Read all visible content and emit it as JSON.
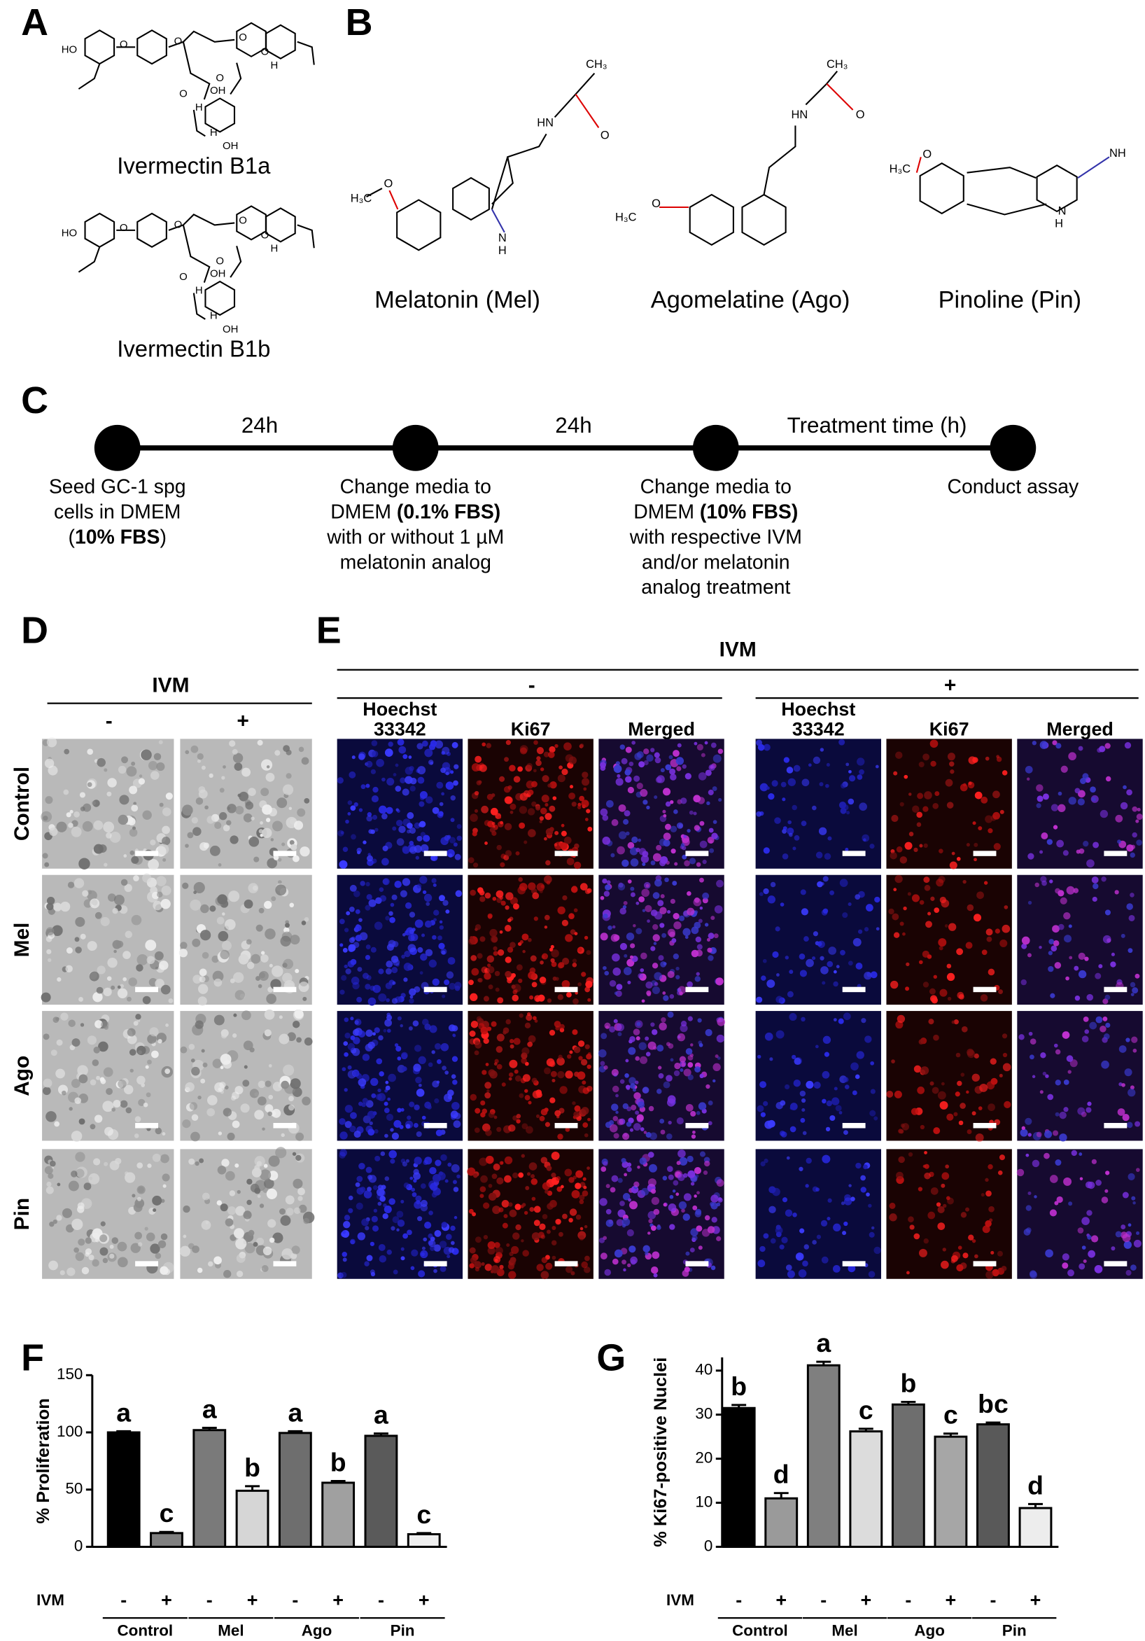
{
  "panel_labels": [
    "A",
    "B",
    "C",
    "D",
    "E",
    "F",
    "G"
  ],
  "panel_A": {
    "molecules": [
      {
        "name": "Ivermectin B1a",
        "atoms": [
          "HO",
          "O",
          "O",
          "O",
          "O",
          "O",
          "H",
          "H",
          "O",
          "OH",
          "H",
          "OH"
        ]
      },
      {
        "name": "Ivermectin B1b",
        "atoms": [
          "HO",
          "O",
          "O",
          "O",
          "O",
          "O",
          "H",
          "H",
          "O",
          "OH",
          "H",
          "OH"
        ]
      }
    ]
  },
  "panel_B": {
    "molecules": [
      {
        "name": "Melatonin (Mel)",
        "atoms": [
          "CH₃",
          "O",
          "HN",
          "H₃C",
          "O",
          "N",
          "H"
        ]
      },
      {
        "name": "Agomelatine (Ago)",
        "atoms": [
          "CH₃",
          "O",
          "HN",
          "H₃C",
          "O"
        ]
      },
      {
        "name": "Pinoline (Pin)",
        "atoms": [
          "H₃C",
          "O",
          "NH",
          "N",
          "H"
        ]
      }
    ]
  },
  "panel_C": {
    "intervals": [
      "24h",
      "24h",
      "Treatment time (h)"
    ],
    "steps": [
      [
        [
          {
            "text": "Seed GC-1 spg",
            "bold": false
          }
        ],
        [
          {
            "text": "cells in DMEM",
            "bold": false
          }
        ],
        [
          {
            "text": "(",
            "bold": false
          },
          {
            "text": "10% FBS",
            "bold": true
          },
          {
            "text": ")",
            "bold": false
          }
        ]
      ],
      [
        [
          {
            "text": "Change media to",
            "bold": false
          }
        ],
        [
          {
            "text": "DMEM ",
            "bold": false
          },
          {
            "text": "(0.1% FBS)",
            "bold": true
          }
        ],
        [
          {
            "text": "with or without 1 µM",
            "bold": false
          }
        ],
        [
          {
            "text": "melatonin analog",
            "bold": false
          }
        ]
      ],
      [
        [
          {
            "text": "Change media to",
            "bold": false
          }
        ],
        [
          {
            "text": "DMEM ",
            "bold": false
          },
          {
            "text": "(10% FBS)",
            "bold": true
          }
        ],
        [
          {
            "text": "with respective IVM",
            "bold": false
          }
        ],
        [
          {
            "text": "and/or melatonin",
            "bold": false
          }
        ],
        [
          {
            "text": "analog treatment",
            "bold": false
          }
        ]
      ],
      [
        [
          {
            "text": "Conduct assay",
            "bold": false
          }
        ]
      ]
    ]
  },
  "panel_D": {
    "header": "IVM",
    "columns": [
      "-",
      "+"
    ],
    "rows": [
      "Control",
      "Mel",
      "Ago",
      "Pin"
    ]
  },
  "panel_E": {
    "header": "IVM",
    "groups": [
      "-",
      "+"
    ],
    "columns": [
      [
        "Hoechst",
        "33342"
      ],
      [
        "Ki67"
      ],
      [
        "Merged"
      ]
    ]
  },
  "chart_data": [
    {
      "type": "bar",
      "y_label": "% Proliferation",
      "ivm_label": "IVM",
      "categories": [
        "-",
        "+",
        "-",
        "+",
        "-",
        "+",
        "-",
        "+"
      ],
      "groups": [
        "Control",
        "Mel",
        "Ago",
        "Pin"
      ],
      "values": [
        100,
        12,
        102,
        49,
        99.5,
        56,
        97,
        11
      ],
      "errors": [
        1,
        1,
        2,
        4,
        1.5,
        1.5,
        2,
        1
      ],
      "annotations": [
        "a",
        "c",
        "a",
        "b",
        "a",
        "b",
        "a",
        "c"
      ],
      "colors": [
        "#000000",
        "#808080",
        "#7a7a7a",
        "#d6d6d6",
        "#6e6e6e",
        "#a0a0a0",
        "#5a5a5a",
        "#efefef"
      ],
      "ylim": [
        0,
        150
      ],
      "yticks": [
        0,
        50,
        100,
        150
      ]
    },
    {
      "type": "bar",
      "y_label": "% Ki67-positive Nuclei",
      "ivm_label": "IVM",
      "categories": [
        "-",
        "+",
        "-",
        "+",
        "-",
        "+",
        "-",
        "+"
      ],
      "groups": [
        "Control",
        "Mel",
        "Ago",
        "Pin"
      ],
      "values": [
        31.5,
        11,
        41.2,
        26.2,
        32.3,
        25,
        27.8,
        8.8
      ],
      "errors": [
        0.7,
        1.2,
        0.8,
        0.6,
        0.6,
        0.7,
        0.4,
        0.9
      ],
      "annotations": [
        "b",
        "d",
        "a",
        "c",
        "b",
        "c",
        "bc",
        "d"
      ],
      "colors": [
        "#000000",
        "#9a9a9a",
        "#7f7f7f",
        "#dcdcdc",
        "#6e6e6e",
        "#a6a6a6",
        "#595959",
        "#ededed"
      ],
      "ylim": [
        0,
        43
      ],
      "yticks": [
        0,
        10,
        20,
        30,
        40
      ]
    }
  ]
}
